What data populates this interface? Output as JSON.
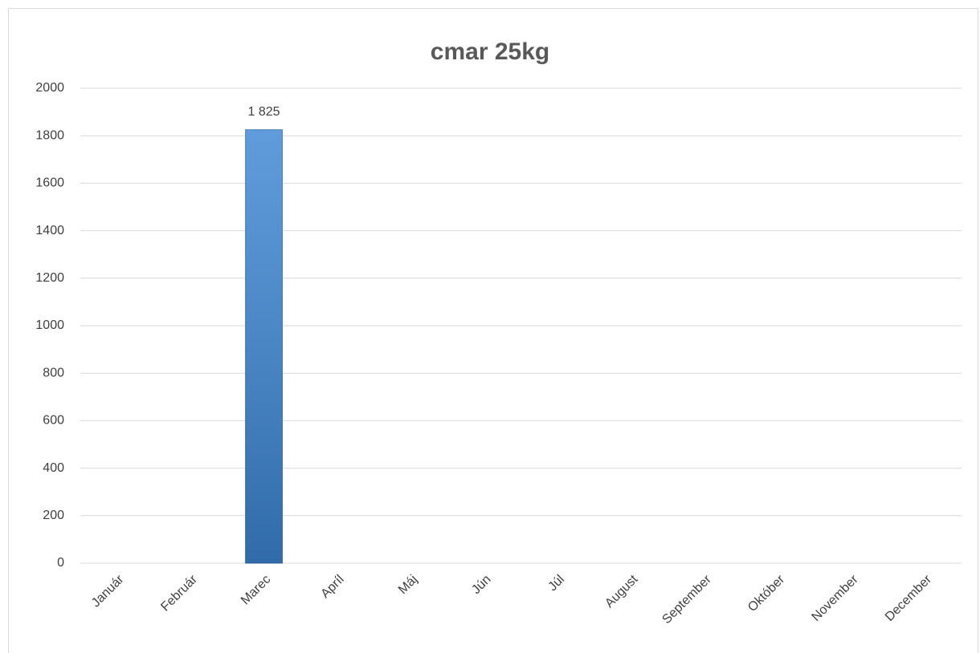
{
  "chart_data": {
    "type": "bar",
    "title": "cmar 25kg",
    "categories": [
      "Január",
      "Február",
      "Marec",
      "Apríl",
      "Máj",
      "Jún",
      "Júl",
      "August",
      "September",
      "Október",
      "November",
      "December"
    ],
    "values": [
      null,
      null,
      1825,
      null,
      null,
      null,
      null,
      null,
      null,
      null,
      null,
      null
    ],
    "value_labels": [
      null,
      null,
      "1 825",
      null,
      null,
      null,
      null,
      null,
      null,
      null,
      null,
      null
    ],
    "color": "#3d86d4",
    "ylim": [
      0,
      2000
    ],
    "yticks": [
      0,
      200,
      400,
      600,
      800,
      1000,
      1200,
      1400,
      1600,
      1800,
      2000
    ],
    "grid": true
  }
}
